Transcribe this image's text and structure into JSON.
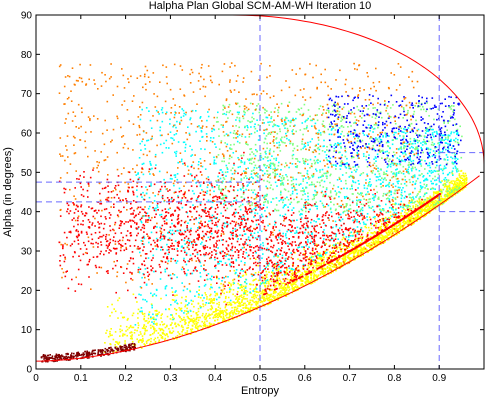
{
  "chart_data": {
    "type": "scatter",
    "title": "Halpha Plan Global SCM-AM-WH Iteration 10",
    "xlabel": "Entropy",
    "ylabel": "Alpha (in degrees)",
    "xlim": [
      0,
      1
    ],
    "ylim": [
      0,
      90
    ],
    "x_ticks": [
      "0",
      "0.1",
      "0.2",
      "0.3",
      "0.4",
      "0.5",
      "0.6",
      "0.7",
      "0.8",
      "0.9"
    ],
    "y_ticks": [
      "0",
      "10",
      "20",
      "30",
      "40",
      "50",
      "60",
      "70",
      "80",
      "90"
    ],
    "grid": false,
    "legend": "none",
    "boundary_lines": {
      "vertical_x": [
        0.5,
        0.9
      ],
      "horizontal_segments": [
        {
          "y": 47.5,
          "x_from": 0,
          "x_to": 0.5
        },
        {
          "y": 42.5,
          "x_from": 0,
          "x_to": 0.5
        },
        {
          "y": 55,
          "x_from": 0.9,
          "x_to": 1.0
        },
        {
          "y": 40,
          "x_from": 0.9,
          "x_to": 1.0
        }
      ],
      "color": "#6a6aff"
    },
    "feasible_boundary_color": "#ff0000",
    "series": [
      {
        "color": "#ffff00",
        "description_region": "lower band",
        "x_range": [
          0.15,
          0.96
        ],
        "y_range": [
          5,
          50
        ]
      },
      {
        "color": "#00ffff",
        "description_region": "middle band",
        "x_range": [
          0.2,
          0.95
        ],
        "y_range": [
          15,
          75
        ]
      },
      {
        "color": "#7fff7f",
        "description_region": "upper right",
        "x_range": [
          0.4,
          0.95
        ],
        "y_range": [
          40,
          70
        ]
      },
      {
        "color": "#ff0000",
        "description_region": "broad",
        "x_range": [
          0.05,
          0.9
        ],
        "y_range": [
          20,
          80
        ]
      },
      {
        "color": "#ff7f00",
        "description_region": "upper left",
        "x_range": [
          0.05,
          0.85
        ],
        "y_range": [
          15,
          80
        ]
      },
      {
        "color": "#0000ff",
        "description_region": "top right",
        "x_range": [
          0.65,
          0.95
        ],
        "y_range": [
          50,
          70
        ]
      },
      {
        "color": "#800000",
        "description_region": "bottom left",
        "x_range": [
          0.01,
          0.22
        ],
        "y_range": [
          2,
          8
        ]
      }
    ]
  }
}
